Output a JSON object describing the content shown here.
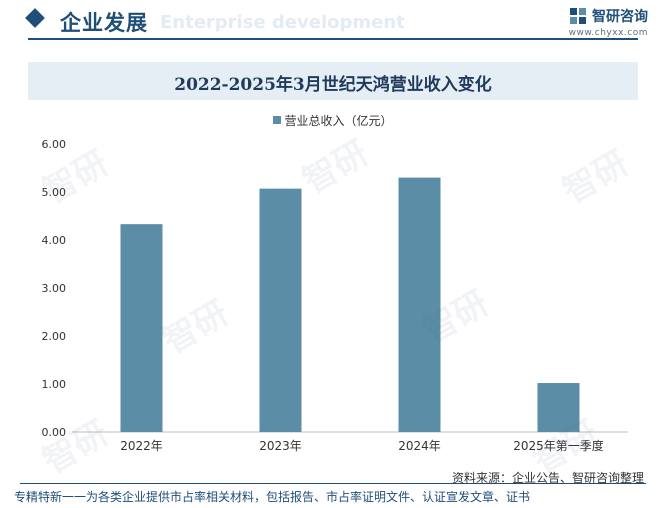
{
  "header": {
    "section_title": "企业发展",
    "section_subtitle": "Enterprise development",
    "brand_name": "智研咨询",
    "brand_url": "www.chyxx.com"
  },
  "chart_data": {
    "type": "bar",
    "title": "2022-2025年3月世纪天鸿营业收入变化",
    "categories": [
      "2022年",
      "2023年",
      "2024年",
      "2025年第一季度"
    ],
    "series": [
      {
        "name": "营业总收入（亿元）",
        "values": [
          4.33,
          5.07,
          5.3,
          1.02
        ],
        "color": "#5b8ea6"
      }
    ],
    "yticks": [
      "0.00",
      "1.00",
      "2.00",
      "3.00",
      "4.00",
      "5.00",
      "6.00"
    ],
    "ylim": [
      0,
      6
    ],
    "grid": false,
    "legend_position": "top"
  },
  "source": "资料来源：企业公告、智研咨询整理",
  "footer": "专精特新一一为各类企业提供市占率相关材料，包括报告、市占率证明文件、认证宣发文章、证书"
}
